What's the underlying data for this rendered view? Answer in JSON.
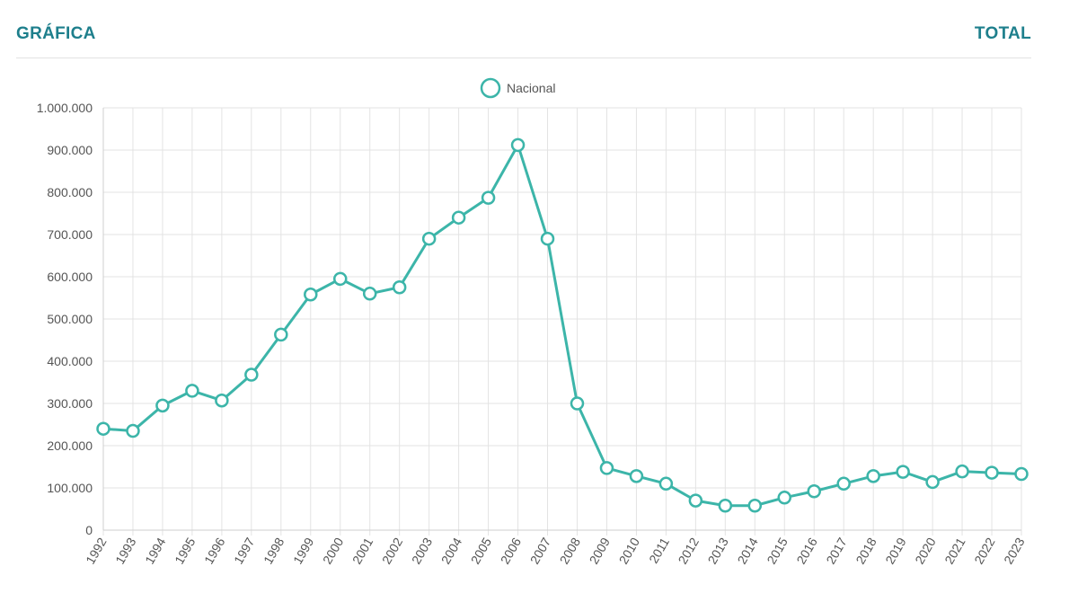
{
  "header": {
    "left_tab": "GRÁFICA",
    "right_tab": "TOTAL"
  },
  "colors": {
    "accent": "#1e7f8c",
    "series": "#3cb5a9",
    "grid": "#e3e3e3",
    "axis_text": "#555555"
  },
  "chart_data": {
    "type": "line",
    "title": "",
    "xlabel": "",
    "ylabel": "",
    "ylim": [
      0,
      1000000
    ],
    "y_ticks": [
      0,
      100000,
      200000,
      300000,
      400000,
      500000,
      600000,
      700000,
      800000,
      900000,
      1000000
    ],
    "y_tick_labels": [
      "0",
      "100.000",
      "200.000",
      "300.000",
      "400.000",
      "500.000",
      "600.000",
      "700.000",
      "800.000",
      "900.000",
      "1.000.000"
    ],
    "categories": [
      "1992",
      "1993",
      "1994",
      "1995",
      "1996",
      "1997",
      "1998",
      "1999",
      "2000",
      "2001",
      "2002",
      "2003",
      "2004",
      "2005",
      "2006",
      "2007",
      "2008",
      "2009",
      "2010",
      "2011",
      "2012",
      "2013",
      "2014",
      "2015",
      "2016",
      "2017",
      "2018",
      "2019",
      "2020",
      "2021",
      "2022",
      "2023"
    ],
    "legend_position": "top-center",
    "grid": true,
    "series": [
      {
        "name": "Nacional",
        "values": [
          240000,
          235000,
          295000,
          330000,
          307000,
          368000,
          463000,
          558000,
          595000,
          560000,
          575000,
          690000,
          740000,
          787000,
          912000,
          690000,
          300000,
          147000,
          128000,
          110000,
          70000,
          58000,
          58000,
          77000,
          92000,
          110000,
          128000,
          138000,
          114000,
          139000,
          136000,
          133000
        ]
      }
    ]
  }
}
